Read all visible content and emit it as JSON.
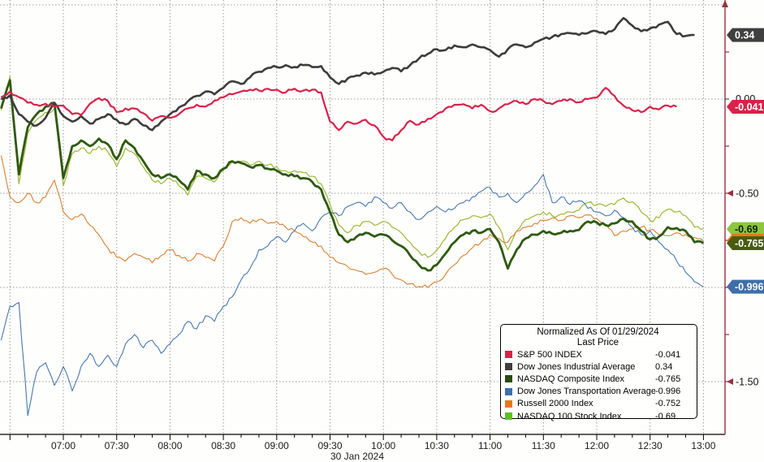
{
  "chart_data": {
    "type": "line",
    "title": "",
    "x_axis": {
      "labels": [
        "07:00",
        "07:30",
        "08:00",
        "08:30",
        "09:00",
        "09:30",
        "10:00",
        "10:30",
        "11:00",
        "11:30",
        "12:00",
        "12:30",
        "13:00"
      ],
      "grid_times": [
        "06:30",
        "07:00",
        "07:30",
        "08:00",
        "08:30",
        "09:00",
        "09:30",
        "10:00",
        "10:30",
        "11:00",
        "11:30",
        "12:00",
        "12:30",
        "13:00"
      ],
      "date_label": "30 Jan 2024"
    },
    "y_axis": {
      "grid_values": [
        0.5,
        0.0,
        -0.5,
        -1.0,
        -1.5
      ],
      "labeled_ticks": [
        {
          "value": -0.5,
          "label": "-0.50"
        },
        {
          "value": -1.5,
          "label": "-1.50"
        }
      ],
      "zero_label": {
        "value": 0.0,
        "label": "0.00"
      },
      "range": [
        -1.75,
        0.55
      ],
      "axis_color": "#963141"
    },
    "grid_color": "#9d9d9d",
    "legend": {
      "title_line1": "Normalized As Of 01/29/2024",
      "title_line2": "Last Price",
      "items": [
        {
          "name": "S&P 500 INDEX",
          "value": "-0.041",
          "color": "#d8224a"
        },
        {
          "name": "Dow Jones Industrial Average",
          "value": "0.34",
          "color": "#3f3f3f"
        },
        {
          "name": "NASDAQ Composite Index",
          "value": "-0.765",
          "color": "#2a4d0d"
        },
        {
          "name": "Dow Jones Transportation Average",
          "value": "-0.996",
          "color": "#3e6fa8"
        },
        {
          "name": "Russell 2000 Index",
          "value": "-0.752",
          "color": "#e8761f"
        },
        {
          "name": "NASDAQ 100 Stock Index",
          "value": "-0.69",
          "color": "#5fc121"
        }
      ]
    },
    "times": [
      "06:25",
      "06:30",
      "06:35",
      "06:40",
      "06:45",
      "06:50",
      "06:55",
      "07:00",
      "07:05",
      "07:10",
      "07:15",
      "07:20",
      "07:25",
      "07:30",
      "07:35",
      "07:40",
      "07:45",
      "07:50",
      "07:55",
      "08:00",
      "08:05",
      "08:10",
      "08:15",
      "08:20",
      "08:25",
      "08:30",
      "08:35",
      "08:40",
      "08:45",
      "08:50",
      "08:55",
      "09:00",
      "09:05",
      "09:10",
      "09:15",
      "09:20",
      "09:25",
      "09:30",
      "09:35",
      "09:40",
      "09:45",
      "09:50",
      "09:55",
      "10:00",
      "10:05",
      "10:10",
      "10:15",
      "10:20",
      "10:25",
      "10:30",
      "10:35",
      "10:40",
      "10:45",
      "10:50",
      "10:55",
      "11:00",
      "11:05",
      "11:10",
      "11:15",
      "11:20",
      "11:25",
      "11:30",
      "11:35",
      "11:40",
      "11:45",
      "11:50",
      "11:55",
      "12:00",
      "12:05",
      "12:10",
      "12:15",
      "12:20",
      "12:25",
      "12:30",
      "12:35",
      "12:40",
      "12:45",
      "12:50",
      "12:55",
      "13:00"
    ],
    "series": [
      {
        "name": "NASDAQ 100 Stock Index",
        "color": "#9bb832",
        "line_width": 1.2,
        "badge": {
          "label": "-0.69",
          "bg": "#8cc63e",
          "fg": "#122000"
        },
        "values": [
          -0.06,
          0.12,
          -0.45,
          -0.18,
          -0.11,
          -0.07,
          -0.05,
          -0.46,
          -0.29,
          -0.26,
          -0.29,
          -0.25,
          -0.28,
          -0.36,
          -0.26,
          -0.29,
          -0.36,
          -0.43,
          -0.45,
          -0.42,
          -0.46,
          -0.51,
          -0.41,
          -0.42,
          -0.44,
          -0.38,
          -0.33,
          -0.33,
          -0.35,
          -0.33,
          -0.35,
          -0.36,
          -0.38,
          -0.38,
          -0.39,
          -0.41,
          -0.45,
          -0.56,
          -0.67,
          -0.71,
          -0.67,
          -0.65,
          -0.67,
          -0.65,
          -0.68,
          -0.71,
          -0.76,
          -0.81,
          -0.84,
          -0.8,
          -0.74,
          -0.68,
          -0.64,
          -0.62,
          -0.63,
          -0.61,
          -0.68,
          -0.8,
          -0.7,
          -0.64,
          -0.62,
          -0.6,
          -0.62,
          -0.61,
          -0.6,
          -0.59,
          -0.55,
          -0.56,
          -0.57,
          -0.56,
          -0.525,
          -0.545,
          -0.6,
          -0.645,
          -0.63,
          -0.585,
          -0.6,
          -0.62,
          -0.68,
          -0.69
        ]
      },
      {
        "name": "Russell 2000 Index",
        "color": "#d9802f",
        "line_width": 1.1,
        "badge": {
          "label": "-0.752",
          "bg": "#e8761f",
          "fg": "#ffffff"
        },
        "values": [
          -0.3,
          -0.52,
          -0.55,
          -0.5,
          -0.55,
          -0.52,
          -0.43,
          -0.6,
          -0.64,
          -0.61,
          -0.67,
          -0.72,
          -0.79,
          -0.84,
          -0.86,
          -0.82,
          -0.84,
          -0.87,
          -0.83,
          -0.8,
          -0.83,
          -0.86,
          -0.82,
          -0.84,
          -0.86,
          -0.78,
          -0.65,
          -0.63,
          -0.66,
          -0.64,
          -0.66,
          -0.65,
          -0.68,
          -0.7,
          -0.73,
          -0.76,
          -0.78,
          -0.84,
          -0.87,
          -0.89,
          -0.91,
          -0.93,
          -0.92,
          -0.9,
          -0.93,
          -0.96,
          -0.98,
          -0.995,
          -1.0,
          -0.97,
          -0.93,
          -0.88,
          -0.83,
          -0.79,
          -0.76,
          -0.72,
          -0.74,
          -0.76,
          -0.7,
          -0.68,
          -0.66,
          -0.645,
          -0.63,
          -0.645,
          -0.62,
          -0.63,
          -0.615,
          -0.635,
          -0.665,
          -0.725,
          -0.7,
          -0.69,
          -0.68,
          -0.695,
          -0.72,
          -0.725,
          -0.71,
          -0.72,
          -0.735,
          -0.752
        ]
      },
      {
        "name": "Dow Jones Transportation Average",
        "color": "#4878ad",
        "line_width": 1.1,
        "badge": {
          "label": "-0.996",
          "bg": "#3e6fa8",
          "fg": "#ffffff"
        },
        "values": [
          -1.28,
          -1.1,
          -1.08,
          -1.68,
          -1.45,
          -1.4,
          -1.52,
          -1.42,
          -1.55,
          -1.42,
          -1.35,
          -1.42,
          -1.36,
          -1.42,
          -1.3,
          -1.25,
          -1.32,
          -1.28,
          -1.35,
          -1.3,
          -1.25,
          -1.18,
          -1.22,
          -1.15,
          -1.18,
          -1.1,
          -1.05,
          -0.96,
          -0.9,
          -0.8,
          -0.78,
          -0.73,
          -0.76,
          -0.7,
          -0.66,
          -0.7,
          -0.63,
          -0.6,
          -0.62,
          -0.57,
          -0.55,
          -0.57,
          -0.52,
          -0.55,
          -0.58,
          -0.55,
          -0.6,
          -0.64,
          -0.6,
          -0.57,
          -0.6,
          -0.58,
          -0.55,
          -0.52,
          -0.49,
          -0.47,
          -0.52,
          -0.5,
          -0.55,
          -0.5,
          -0.46,
          -0.4,
          -0.55,
          -0.52,
          -0.56,
          -0.54,
          -0.58,
          -0.6,
          -0.62,
          -0.59,
          -0.63,
          -0.68,
          -0.72,
          -0.7,
          -0.76,
          -0.8,
          -0.86,
          -0.92,
          -0.97,
          -0.996
        ]
      },
      {
        "name": "NASDAQ Composite Index",
        "color": "#2e5a0e",
        "line_width": 2.8,
        "badge": {
          "label": "-0.765",
          "bg": "#4a5d0e",
          "fg": "#ffffff"
        },
        "values": [
          -0.05,
          0.1,
          -0.4,
          -0.15,
          -0.08,
          -0.04,
          -0.02,
          -0.42,
          -0.25,
          -0.22,
          -0.25,
          -0.21,
          -0.24,
          -0.32,
          -0.22,
          -0.26,
          -0.33,
          -0.4,
          -0.42,
          -0.4,
          -0.43,
          -0.48,
          -0.38,
          -0.4,
          -0.42,
          -0.37,
          -0.33,
          -0.34,
          -0.36,
          -0.35,
          -0.37,
          -0.38,
          -0.4,
          -0.41,
          -0.42,
          -0.44,
          -0.48,
          -0.6,
          -0.72,
          -0.76,
          -0.73,
          -0.71,
          -0.73,
          -0.72,
          -0.75,
          -0.78,
          -0.83,
          -0.88,
          -0.91,
          -0.88,
          -0.82,
          -0.76,
          -0.72,
          -0.7,
          -0.71,
          -0.69,
          -0.76,
          -0.9,
          -0.8,
          -0.74,
          -0.72,
          -0.7,
          -0.715,
          -0.71,
          -0.7,
          -0.695,
          -0.65,
          -0.655,
          -0.67,
          -0.66,
          -0.635,
          -0.65,
          -0.7,
          -0.745,
          -0.73,
          -0.68,
          -0.685,
          -0.7,
          -0.76,
          -0.765
        ]
      },
      {
        "name": "Dow Jones Industrial Average",
        "color": "#3c3c3c",
        "line_width": 2.6,
        "badge": {
          "label": "0.34",
          "bg": "#3f3f3f",
          "fg": "#ffffff"
        },
        "values": [
          0.0,
          0.02,
          -0.08,
          -0.12,
          -0.14,
          -0.1,
          -0.02,
          -0.09,
          -0.12,
          -0.09,
          -0.13,
          -0.105,
          -0.08,
          -0.11,
          -0.135,
          -0.105,
          -0.14,
          -0.165,
          -0.12,
          -0.08,
          -0.045,
          -0.012,
          0.017,
          0.04,
          0.025,
          0.06,
          0.095,
          0.08,
          0.115,
          0.145,
          0.165,
          0.17,
          0.18,
          0.17,
          0.18,
          0.17,
          0.175,
          0.115,
          0.08,
          0.11,
          0.125,
          0.14,
          0.13,
          0.145,
          0.165,
          0.147,
          0.18,
          0.215,
          0.24,
          0.265,
          0.26,
          0.285,
          0.275,
          0.29,
          0.275,
          0.26,
          0.225,
          0.265,
          0.29,
          0.275,
          0.3,
          0.32,
          0.33,
          0.345,
          0.35,
          0.34,
          0.35,
          0.36,
          0.345,
          0.37,
          0.43,
          0.39,
          0.36,
          0.375,
          0.395,
          0.41,
          0.345,
          0.335,
          0.34,
          null
        ]
      },
      {
        "name": "S&P 500 INDEX",
        "color": "#d8224a",
        "line_width": 2.2,
        "badge": {
          "label": "-0.041",
          "bg": "#d8224a",
          "fg": "#ffffff"
        },
        "values": [
          0.01,
          0.04,
          0.01,
          -0.02,
          -0.03,
          -0.025,
          -0.04,
          -0.035,
          -0.08,
          -0.085,
          -0.025,
          0.005,
          -0.01,
          -0.07,
          -0.05,
          -0.05,
          -0.075,
          -0.115,
          -0.09,
          -0.1,
          -0.08,
          -0.05,
          -0.03,
          -0.04,
          -0.008,
          0.01,
          0.025,
          0.04,
          0.05,
          0.045,
          0.055,
          0.05,
          0.035,
          0.055,
          0.045,
          0.05,
          0.035,
          -0.12,
          -0.165,
          -0.12,
          -0.13,
          -0.11,
          -0.14,
          -0.2,
          -0.22,
          -0.165,
          -0.115,
          -0.135,
          -0.105,
          -0.08,
          -0.05,
          -0.03,
          -0.027,
          -0.05,
          -0.03,
          -0.065,
          -0.05,
          -0.027,
          -0.01,
          -0.027,
          0.0,
          -0.01,
          -0.027,
          -0.01,
          0.0,
          -0.017,
          0.0,
          0.008,
          0.06,
          0.017,
          -0.035,
          -0.06,
          -0.07,
          -0.04,
          -0.055,
          -0.035,
          -0.041,
          null,
          null,
          null
        ]
      }
    ]
  }
}
